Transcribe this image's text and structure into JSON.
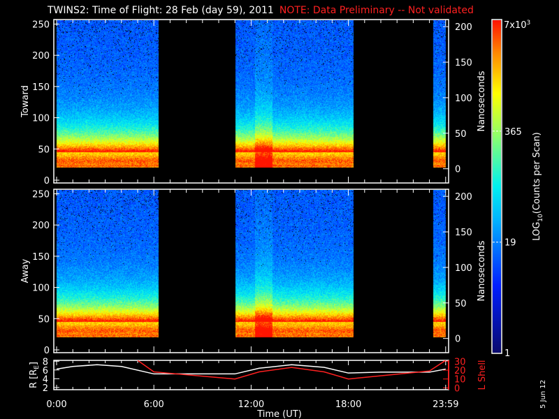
{
  "title": {
    "main": "TWINS2: Time of Flight: 28 Feb (day  59), 2011",
    "note": "NOTE: Data Preliminary -- Not validated"
  },
  "stamp": "5 Jun 12",
  "colors": {
    "white": "#ffffff",
    "red": "#ff2020",
    "background": "#000000"
  },
  "chart_data": [
    {
      "type": "heatmap",
      "name": "Toward",
      "ylabel_left": "Toward",
      "ylabel_right": "Nanoseconds",
      "left_ticks": [
        "0",
        "50",
        "100",
        "150",
        "200",
        "250"
      ],
      "left_range": [
        0,
        255
      ],
      "right_ticks": [
        "0",
        "50",
        "100",
        "150",
        "200"
      ],
      "right_range": [
        -20,
        210
      ],
      "data_intervals_hours": [
        [
          0,
          6.25
        ],
        [
          11,
          18.3
        ],
        [
          23.2,
          24
        ]
      ],
      "peak_band": [
        20,
        45
      ]
    },
    {
      "type": "heatmap",
      "name": "Away",
      "ylabel_left": "Away",
      "ylabel_right": "Nanoseconds",
      "left_ticks": [
        "0",
        "50",
        "100",
        "150",
        "200",
        "250"
      ],
      "left_range": [
        0,
        255
      ],
      "right_ticks": [
        "0",
        "50",
        "100",
        "150",
        "200"
      ],
      "right_range": [
        -20,
        210
      ],
      "data_intervals_hours": [
        [
          0,
          6.25
        ],
        [
          11,
          18.3
        ],
        [
          23.2,
          24
        ]
      ],
      "peak_band": [
        20,
        45
      ]
    },
    {
      "type": "colorbar",
      "label": "LOG10(Counts per Scan)",
      "ticks": [
        "1",
        "19",
        "365",
        "7x10^3"
      ],
      "tick_values": [
        1,
        19,
        365,
        7000
      ],
      "top_label_base": "7x10",
      "top_label_exp": "3",
      "label_main": "LOG",
      "label_sub": "10",
      "label_rest": "(Counts per Scan)"
    },
    {
      "type": "line",
      "xlabel": "Time (UT)",
      "x_ticks": [
        "0:00",
        "6:00",
        "12:00",
        "18:00",
        "23:59"
      ],
      "ylabel_left": "R [RE]",
      "ylabel_left_main": "R [R",
      "ylabel_left_sub": "E",
      "ylabel_left_end": "]",
      "left_ticks": [
        "2",
        "4",
        "6",
        "8"
      ],
      "left_range": [
        1.5,
        8.2
      ],
      "ylabel_right": "L Shell",
      "right_ticks": [
        "0",
        "10",
        "20",
        "30"
      ],
      "right_range": [
        -2,
        31
      ],
      "series": [
        {
          "name": "R",
          "color": "#ffffff",
          "x": [
            0,
            1,
            2.5,
            4,
            6,
            11,
            12.5,
            14.5,
            16.5,
            18,
            20,
            23,
            24
          ],
          "y": [
            6.2,
            6.8,
            7.2,
            6.8,
            5.1,
            5.1,
            6.4,
            7.2,
            6.6,
            5.3,
            5.5,
            5.5,
            6.2
          ]
        },
        {
          "name": "L Shell",
          "color": "#ff2020",
          "x": [
            5,
            6,
            11,
            12.5,
            14.5,
            16.5,
            18,
            23,
            24
          ],
          "y": [
            31,
            18,
            10,
            18,
            23,
            18,
            10,
            19,
            31
          ]
        }
      ]
    }
  ]
}
